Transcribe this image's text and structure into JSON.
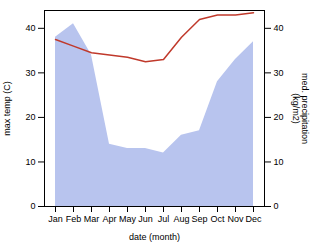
{
  "chart_data": {
    "type": "area",
    "xlabel": "date (month)",
    "ylabel": "max temp (C)",
    "y2label": "med. precipitation\n(kg/m2)",
    "categories": [
      "Jan",
      "Feb",
      "Mar",
      "Apr",
      "May",
      "Jun",
      "Jul",
      "Aug",
      "Sep",
      "Oct",
      "Nov",
      "Dec"
    ],
    "series": [
      {
        "type": "area",
        "color": "#b8c4ee",
        "values": [
          38,
          41,
          34,
          14,
          13,
          13,
          12,
          16,
          17,
          28,
          33,
          37
        ]
      },
      {
        "type": "line",
        "color": "#c0392b",
        "axis": "y2",
        "values": [
          37.5,
          36,
          34.5,
          34,
          33.5,
          32.5,
          33,
          38,
          42,
          43,
          43,
          43.5
        ]
      }
    ],
    "ylim": [
      0,
      44
    ],
    "yticks": [
      0,
      10,
      20,
      30,
      40
    ],
    "y2lim": [
      0,
      44
    ],
    "y2ticks": [
      0,
      10,
      20,
      30,
      40
    ]
  }
}
